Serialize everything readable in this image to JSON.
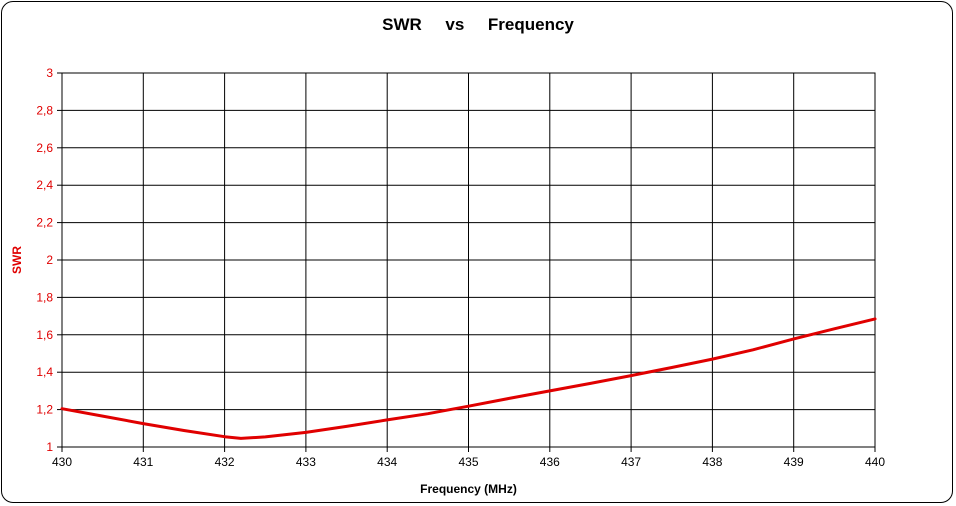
{
  "chart_data": {
    "type": "line",
    "title": "SWR     vs     Frequency",
    "xlabel": "Frequency (MHz)",
    "ylabel": "SWR",
    "xlim": [
      430,
      440
    ],
    "ylim": [
      1,
      3
    ],
    "x_ticks": [
      "430",
      "431",
      "432",
      "433",
      "434",
      "435",
      "436",
      "437",
      "438",
      "439",
      "440"
    ],
    "y_ticks": [
      "1",
      "1,2",
      "1,4",
      "1,6",
      "1,8",
      "2",
      "2,2",
      "2,4",
      "2,6",
      "2,8",
      "3"
    ],
    "grid": true,
    "series": [
      {
        "color": "#e00000",
        "x": [
          430,
          430.5,
          431,
          431.5,
          432,
          432.2,
          432.5,
          433,
          433.5,
          434,
          434.5,
          435,
          435.5,
          436,
          436.5,
          437,
          437.5,
          438,
          438.5,
          439,
          439.5,
          440
        ],
        "y": [
          1.205,
          1.165,
          1.125,
          1.088,
          1.055,
          1.046,
          1.054,
          1.078,
          1.11,
          1.145,
          1.178,
          1.218,
          1.26,
          1.3,
          1.34,
          1.382,
          1.425,
          1.47,
          1.52,
          1.578,
          1.632,
          1.685
        ]
      }
    ],
    "colors": {
      "line": "#e00000",
      "y_tick_text": "#e00000",
      "x_tick_text": "#000000",
      "grid": "#000000",
      "ylabel": "#e00000"
    }
  }
}
